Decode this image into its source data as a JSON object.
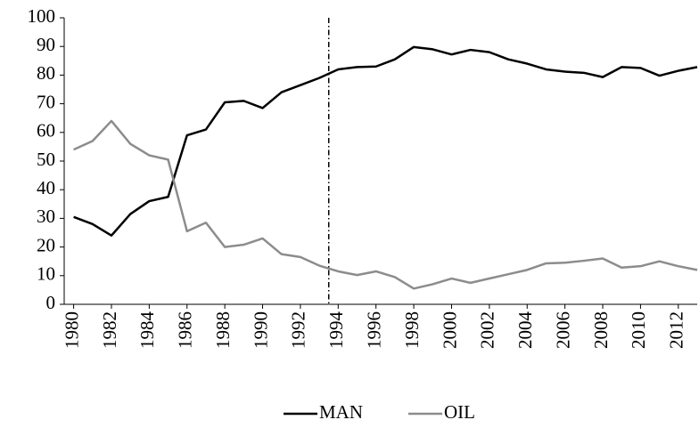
{
  "chart_data": {
    "type": "line",
    "x": [
      1980,
      1981,
      1982,
      1983,
      1984,
      1985,
      1986,
      1987,
      1988,
      1989,
      1990,
      1991,
      1992,
      1993,
      1994,
      1995,
      1996,
      1997,
      1998,
      1999,
      2000,
      2001,
      2002,
      2003,
      2004,
      2005,
      2006,
      2007,
      2008,
      2009,
      2010,
      2011,
      2012,
      2013
    ],
    "series": [
      {
        "name": "MAN",
        "color": "#000000",
        "values": [
          30.5,
          28,
          24,
          31.5,
          36,
          37.5,
          59,
          61,
          70.5,
          71,
          68.5,
          74,
          76.5,
          79,
          82,
          82.8,
          83,
          85.5,
          89.8,
          89,
          87.2,
          88.8,
          88,
          85.5,
          84,
          82,
          81.2,
          80.8,
          79.3,
          82.8,
          82.5,
          79.8,
          81.5,
          82.8
        ]
      },
      {
        "name": "OIL",
        "color": "#8c8c8c",
        "values": [
          54,
          57,
          64,
          56,
          52,
          50.5,
          25.5,
          28.5,
          20,
          20.8,
          23,
          17.5,
          16.5,
          13.5,
          11.5,
          10.2,
          11.5,
          9.5,
          5.5,
          7,
          9,
          7.5,
          9,
          10.5,
          12,
          14.3,
          14.5,
          15.2,
          16,
          12.8,
          13.3,
          15,
          13.3,
          12
        ]
      }
    ],
    "xlim": [
      1979.5,
      2013
    ],
    "xticks": [
      1980,
      1982,
      1984,
      1986,
      1988,
      1990,
      1992,
      1994,
      1996,
      1998,
      2000,
      2002,
      2004,
      2006,
      2008,
      2010,
      2012
    ],
    "ylim": [
      0,
      100
    ],
    "yticks": [
      0,
      10,
      20,
      30,
      40,
      50,
      60,
      70,
      80,
      90,
      100
    ],
    "vline": 1993.5,
    "legend": "bottom"
  }
}
